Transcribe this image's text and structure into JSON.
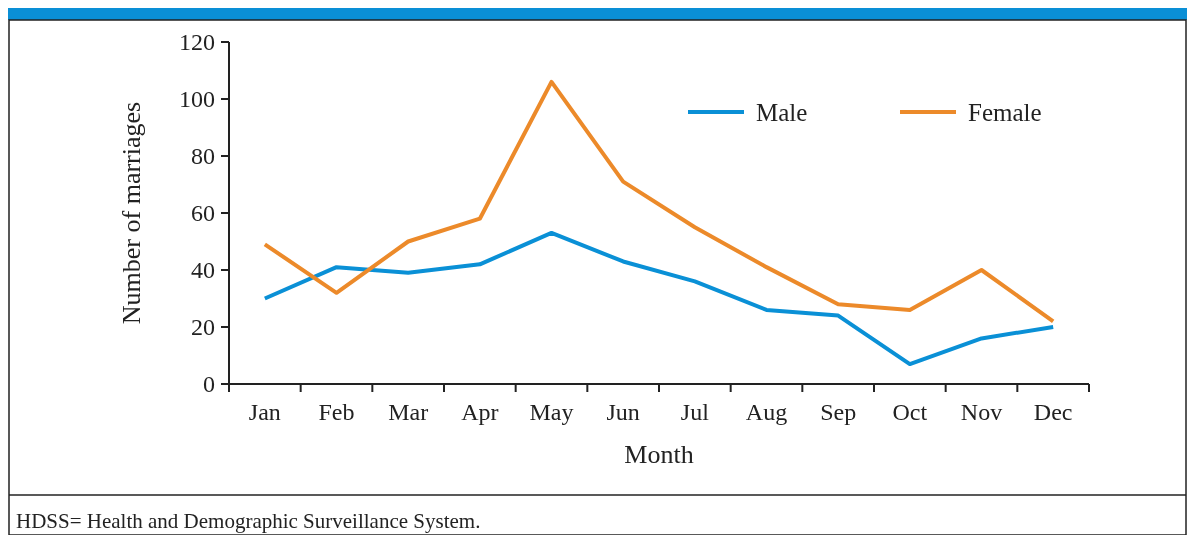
{
  "chart_data": {
    "type": "line",
    "xlabel": "Month",
    "ylabel": "Number of marriages",
    "categories": [
      "Jan",
      "Feb",
      "Mar",
      "Apr",
      "May",
      "Jun",
      "Jul",
      "Aug",
      "Sep",
      "Oct",
      "Nov",
      "Dec"
    ],
    "series": [
      {
        "name": "Male",
        "color": "#0a90d6",
        "values": [
          30,
          41,
          39,
          42,
          53,
          43,
          36,
          26,
          24,
          7,
          16,
          20
        ]
      },
      {
        "name": "Female",
        "color": "#ec8a2a",
        "values": [
          49,
          32,
          50,
          58,
          106,
          71,
          55,
          41,
          28,
          26,
          40,
          22
        ]
      }
    ],
    "ylim": [
      0,
      120
    ],
    "yticks": [
      0,
      20,
      40,
      60,
      80,
      100,
      120
    ],
    "grid": false,
    "legend": "top right",
    "marker": "none",
    "line_style": "solid",
    "annotations": [
      "HDSS= Health and Demographic Surveillance System."
    ]
  }
}
